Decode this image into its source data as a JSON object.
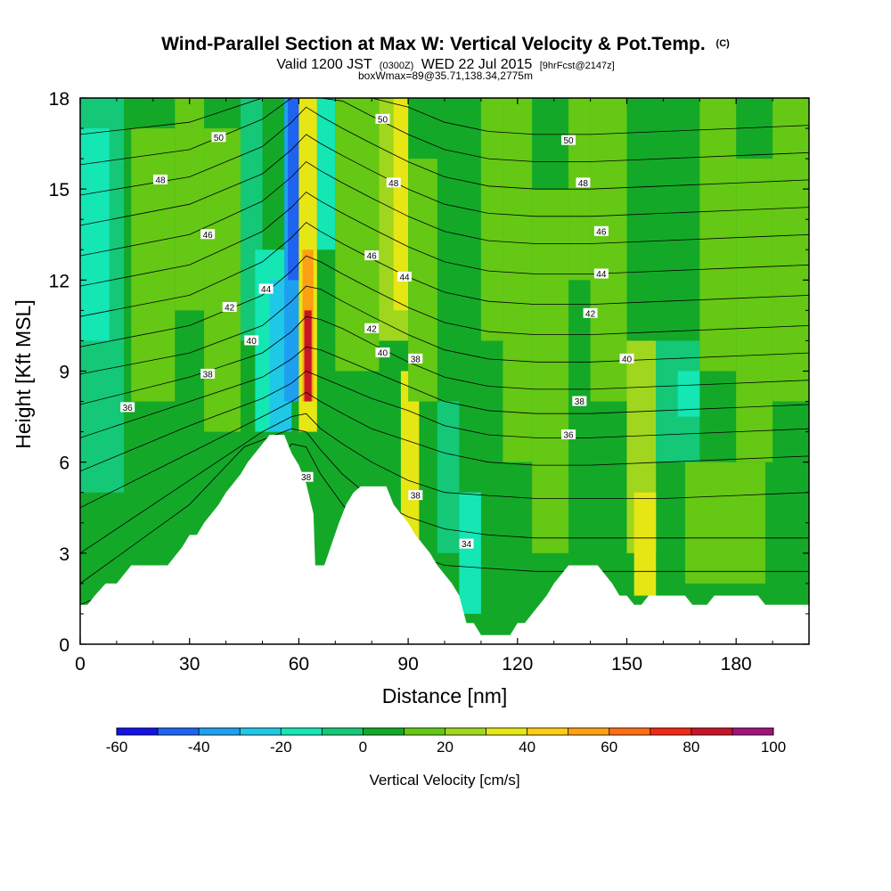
{
  "header": {
    "title": "Wind-Parallel Section at Max W: Vertical Velocity & Pot.Temp.",
    "copyright": "(C)",
    "subtitle_a": "Valid 1200 JST",
    "subtitle_b": "(0300Z)",
    "subtitle_c": "WED 22 Jul 2015",
    "subtitle_d": "[9hrFcst@2147z]",
    "subtitle2": "boxWmax=89@35.71,138.34,2775m"
  },
  "chart_data": {
    "type": "heatmap",
    "title": "Wind-Parallel Section at Max W: Vertical Velocity & Pot.Temp.",
    "xlabel": "Distance [nm]",
    "ylabel": "Height [Kft MSL]",
    "xlim": [
      0,
      200
    ],
    "ylim": [
      0,
      18
    ],
    "x_ticks": [
      "0",
      "30",
      "60",
      "90",
      "120",
      "150",
      "180"
    ],
    "y_ticks": [
      "0",
      "3",
      "6",
      "9",
      "12",
      "15",
      "18"
    ],
    "colorbar": {
      "label": "Vertical Velocity [cm/s]",
      "min": -60,
      "max": 100,
      "step": 10,
      "tick_labels": [
        "-60",
        "-40",
        "-20",
        "0",
        "20",
        "40",
        "60",
        "80",
        "100"
      ],
      "colors": [
        "#1414e6",
        "#1e64f0",
        "#1ea0f0",
        "#1ec8e6",
        "#14e6b4",
        "#14c878",
        "#14a828",
        "#64c814",
        "#a0d61e",
        "#e6e614",
        "#ffcc14",
        "#ffa014",
        "#ff6e14",
        "#f02814",
        "#c81428",
        "#a0147a",
        "#6e148c"
      ]
    },
    "terrain_top_kft": [
      [
        0,
        1.3
      ],
      [
        2,
        1.3
      ],
      [
        4,
        1.6
      ],
      [
        7,
        2
      ],
      [
        10,
        2
      ],
      [
        12,
        2.3
      ],
      [
        14,
        2.6
      ],
      [
        24,
        2.6
      ],
      [
        26,
        2.9
      ],
      [
        28,
        3.2
      ],
      [
        30,
        3.6
      ],
      [
        32,
        3.6
      ],
      [
        34,
        4
      ],
      [
        36,
        4.3
      ],
      [
        38,
        4.6
      ],
      [
        40,
        5
      ],
      [
        42,
        5.3
      ],
      [
        44,
        5.6
      ],
      [
        46,
        6
      ],
      [
        48,
        6.3
      ],
      [
        50,
        6.6
      ],
      [
        52,
        6.9
      ],
      [
        56,
        6.9
      ],
      [
        58,
        6.3
      ],
      [
        60,
        5.9
      ],
      [
        62,
        5.3
      ],
      [
        64,
        4.3
      ],
      [
        64.5,
        2.6
      ],
      [
        67,
        2.6
      ],
      [
        69,
        3.3
      ],
      [
        71,
        4
      ],
      [
        73,
        4.6
      ],
      [
        75,
        5
      ],
      [
        77,
        5.2
      ],
      [
        84,
        5.2
      ],
      [
        86,
        4.6
      ],
      [
        88,
        4.3
      ],
      [
        90,
        4
      ],
      [
        92,
        3.6
      ],
      [
        94,
        3.3
      ],
      [
        96,
        3
      ],
      [
        98,
        2.6
      ],
      [
        100,
        2.3
      ],
      [
        102,
        2
      ],
      [
        104,
        1.6
      ],
      [
        106,
        0.7
      ],
      [
        108,
        0.7
      ],
      [
        110,
        0.3
      ],
      [
        118,
        0.3
      ],
      [
        120,
        0.7
      ],
      [
        122,
        0.7
      ],
      [
        124,
        1
      ],
      [
        126,
        1.3
      ],
      [
        128,
        1.6
      ],
      [
        130,
        2
      ],
      [
        132,
        2.3
      ],
      [
        134,
        2.6
      ],
      [
        142,
        2.6
      ],
      [
        144,
        2.3
      ],
      [
        146,
        2
      ],
      [
        148,
        1.6
      ],
      [
        150,
        1.6
      ],
      [
        152,
        1.3
      ],
      [
        154,
        1.3
      ],
      [
        156,
        1.6
      ],
      [
        166,
        1.6
      ],
      [
        168,
        1.3
      ],
      [
        172,
        1.3
      ],
      [
        174,
        1.6
      ],
      [
        186,
        1.6
      ],
      [
        188,
        1.3
      ],
      [
        200,
        1.3
      ]
    ],
    "w_field": [
      {
        "x0": 0,
        "x1": 200,
        "y0": 0,
        "y1": 18,
        "w": 0
      },
      {
        "x0": 0,
        "x1": 12,
        "y0": 5,
        "y1": 18,
        "w": -10
      },
      {
        "x0": 0,
        "x1": 8,
        "y0": 10,
        "y1": 17,
        "w": -20
      },
      {
        "x0": 14,
        "x1": 26,
        "y0": 8,
        "y1": 17,
        "w": 10
      },
      {
        "x0": 26,
        "x1": 34,
        "y0": 11,
        "y1": 18,
        "w": 10
      },
      {
        "x0": 34,
        "x1": 44,
        "y0": 7,
        "y1": 17,
        "w": 10
      },
      {
        "x0": 44,
        "x1": 50,
        "y0": 10,
        "y1": 18,
        "w": -10
      },
      {
        "x0": 48,
        "x1": 56,
        "y0": 7,
        "y1": 13,
        "w": -20
      },
      {
        "x0": 52,
        "x1": 58,
        "y0": 7,
        "y1": 12,
        "w": -30
      },
      {
        "x0": 56,
        "x1": 60,
        "y0": 8,
        "y1": 18,
        "w": -40
      },
      {
        "x0": 57,
        "x1": 60,
        "y0": 12,
        "y1": 18,
        "w": -50
      },
      {
        "x0": 60,
        "x1": 65,
        "y0": 7,
        "y1": 18,
        "w": 30
      },
      {
        "x0": 61,
        "x1": 64,
        "y0": 8,
        "y1": 13,
        "w": 50
      },
      {
        "x0": 61.5,
        "x1": 63.5,
        "y0": 8,
        "y1": 11,
        "w": 80
      },
      {
        "x0": 62,
        "x1": 63,
        "y0": 8.5,
        "y1": 10,
        "w": 89
      },
      {
        "x0": 65,
        "x1": 70,
        "y0": 13,
        "y1": 18,
        "w": -20
      },
      {
        "x0": 70,
        "x1": 82,
        "y0": 9,
        "y1": 18,
        "w": 10
      },
      {
        "x0": 82,
        "x1": 90,
        "y0": 10,
        "y1": 18,
        "w": 20
      },
      {
        "x0": 86,
        "x1": 90,
        "y0": 11,
        "y1": 18,
        "w": 30
      },
      {
        "x0": 88,
        "x1": 93,
        "y0": 3,
        "y1": 9,
        "w": 30
      },
      {
        "x0": 90,
        "x1": 98,
        "y0": 8,
        "y1": 16,
        "w": 10
      },
      {
        "x0": 98,
        "x1": 104,
        "y0": 3,
        "y1": 8,
        "w": -10
      },
      {
        "x0": 104,
        "x1": 110,
        "y0": 1,
        "y1": 5,
        "w": -20
      },
      {
        "x0": 110,
        "x1": 116,
        "y0": 10,
        "y1": 18,
        "w": 10
      },
      {
        "x0": 116,
        "x1": 124,
        "y0": 6,
        "y1": 18,
        "w": 10
      },
      {
        "x0": 124,
        "x1": 134,
        "y0": 3,
        "y1": 15,
        "w": 10
      },
      {
        "x0": 134,
        "x1": 140,
        "y0": 12,
        "y1": 18,
        "w": 10
      },
      {
        "x0": 140,
        "x1": 150,
        "y0": 8,
        "y1": 18,
        "w": 10
      },
      {
        "x0": 150,
        "x1": 158,
        "y0": 3,
        "y1": 10,
        "w": 20
      },
      {
        "x0": 152,
        "x1": 158,
        "y0": 1.6,
        "y1": 5,
        "w": 30
      },
      {
        "x0": 158,
        "x1": 170,
        "y0": 6,
        "y1": 10,
        "w": -10
      },
      {
        "x0": 164,
        "x1": 170,
        "y0": 7.5,
        "y1": 9,
        "w": -20
      },
      {
        "x0": 170,
        "x1": 180,
        "y0": 9,
        "y1": 18,
        "w": 10
      },
      {
        "x0": 180,
        "x1": 190,
        "y0": 6,
        "y1": 16,
        "w": 10
      },
      {
        "x0": 190,
        "x1": 200,
        "y0": 8,
        "y1": 18,
        "w": 10
      },
      {
        "x0": 166,
        "x1": 188,
        "y0": 2,
        "y1": 6,
        "w": 10
      }
    ],
    "theta_contours": [
      {
        "x": [
          0,
          30,
          50,
          58,
          62,
          66,
          72,
          80,
          90,
          100,
          112,
          125,
          140,
          160,
          180,
          200
        ],
        "y": [
          1.3,
          2.8,
          5.4,
          6.6,
          6.5,
          5.6,
          4.6,
          3.4,
          3.0,
          2.6,
          2.5,
          2.4,
          2.4,
          2.4,
          2.4,
          2.4
        ]
      },
      {
        "x": [
          0,
          30,
          45,
          58,
          62,
          66,
          72,
          80,
          90,
          100,
          112,
          125,
          140,
          160,
          180,
          200
        ],
        "y": [
          2.0,
          4.6,
          6.5,
          7.1,
          7.0,
          6.4,
          5.6,
          4.8,
          4.2,
          3.8,
          3.6,
          3.5,
          3.5,
          3.5,
          3.5,
          3.5
        ]
      },
      {
        "x": [
          0,
          30,
          50,
          58,
          62,
          66,
          72,
          80,
          90,
          100,
          112,
          125,
          140,
          160,
          180,
          200
        ],
        "y": [
          3.0,
          5.4,
          7.0,
          7.5,
          7.6,
          7.1,
          6.6,
          6.0,
          5.4,
          5.0,
          4.9,
          4.8,
          4.8,
          4.8,
          4.9,
          5.0
        ]
      },
      {
        "x": [
          0,
          30,
          50,
          58,
          62,
          66,
          72,
          80,
          90,
          100,
          112,
          125,
          140,
          160,
          180,
          200
        ],
        "y": [
          4.5,
          6.3,
          7.5,
          8.0,
          8.3,
          8.0,
          7.6,
          7.1,
          6.7,
          6.3,
          6.0,
          5.9,
          5.9,
          6.0,
          6.1,
          6.2
        ]
      },
      {
        "x": [
          0,
          30,
          50,
          58,
          62,
          66,
          72,
          80,
          90,
          100,
          112,
          125,
          140,
          160,
          180,
          200
        ],
        "y": [
          5.7,
          7.2,
          8.1,
          8.6,
          9.0,
          8.8,
          8.5,
          8.1,
          7.7,
          7.2,
          6.9,
          6.8,
          6.8,
          6.9,
          7.0,
          7.1
        ]
      },
      {
        "x": [
          0,
          30,
          50,
          58,
          62,
          66,
          72,
          80,
          90,
          100,
          112,
          125,
          140,
          160,
          180,
          200
        ],
        "y": [
          6.8,
          8.0,
          8.8,
          9.4,
          9.8,
          9.7,
          9.4,
          9.0,
          8.5,
          8.0,
          7.7,
          7.6,
          7.6,
          7.7,
          7.8,
          7.9
        ]
      },
      {
        "x": [
          0,
          30,
          50,
          58,
          62,
          66,
          72,
          80,
          90,
          100,
          112,
          125,
          140,
          160,
          180,
          200
        ],
        "y": [
          7.9,
          8.8,
          9.6,
          10.3,
          10.8,
          10.7,
          10.4,
          9.9,
          9.3,
          8.8,
          8.5,
          8.4,
          8.4,
          8.5,
          8.6,
          8.7
        ]
      },
      {
        "x": [
          0,
          30,
          50,
          58,
          62,
          66,
          72,
          80,
          90,
          100,
          112,
          125,
          140,
          160,
          180,
          200
        ],
        "y": [
          8.9,
          9.6,
          10.5,
          11.3,
          11.8,
          11.7,
          11.3,
          10.8,
          10.2,
          9.7,
          9.4,
          9.3,
          9.3,
          9.4,
          9.5,
          9.6
        ]
      },
      {
        "x": [
          0,
          30,
          50,
          58,
          62,
          66,
          72,
          80,
          90,
          100,
          112,
          125,
          140,
          160,
          180,
          200
        ],
        "y": [
          9.8,
          10.5,
          11.5,
          12.3,
          12.8,
          12.6,
          12.2,
          11.7,
          11.1,
          10.6,
          10.3,
          10.2,
          10.2,
          10.3,
          10.4,
          10.5
        ]
      },
      {
        "x": [
          0,
          30,
          50,
          58,
          62,
          66,
          72,
          80,
          90,
          100,
          112,
          125,
          140,
          160,
          180,
          200
        ],
        "y": [
          10.8,
          11.5,
          12.6,
          13.4,
          13.9,
          13.6,
          13.2,
          12.7,
          12.1,
          11.6,
          11.3,
          11.2,
          11.2,
          11.3,
          11.4,
          11.5
        ]
      },
      {
        "x": [
          0,
          30,
          50,
          58,
          62,
          66,
          72,
          80,
          90,
          100,
          112,
          125,
          140,
          160,
          180,
          200
        ],
        "y": [
          11.8,
          12.5,
          13.6,
          14.4,
          14.9,
          14.6,
          14.2,
          13.7,
          13.1,
          12.6,
          12.3,
          12.2,
          12.2,
          12.3,
          12.4,
          12.5
        ]
      },
      {
        "x": [
          0,
          30,
          50,
          58,
          62,
          66,
          72,
          80,
          90,
          100,
          112,
          125,
          140,
          160,
          180,
          200
        ],
        "y": [
          12.8,
          13.5,
          14.6,
          15.4,
          15.9,
          15.6,
          15.2,
          14.7,
          14.1,
          13.6,
          13.3,
          13.2,
          13.2,
          13.3,
          13.4,
          13.5
        ]
      },
      {
        "x": [
          0,
          30,
          50,
          58,
          62,
          66,
          72,
          80,
          90,
          100,
          112,
          125,
          140,
          160,
          180,
          200
        ],
        "y": [
          13.8,
          14.5,
          15.5,
          16.3,
          16.8,
          16.5,
          16.1,
          15.6,
          15.0,
          14.5,
          14.2,
          14.1,
          14.1,
          14.2,
          14.3,
          14.4
        ]
      },
      {
        "x": [
          0,
          30,
          50,
          58,
          62,
          66,
          72,
          80,
          90,
          100,
          112,
          125,
          140,
          160,
          180,
          200
        ],
        "y": [
          14.8,
          15.4,
          16.4,
          17.2,
          17.7,
          17.4,
          17.0,
          16.5,
          15.9,
          15.4,
          15.1,
          15.0,
          15.0,
          15.1,
          15.2,
          15.3
        ]
      },
      {
        "x": [
          0,
          30,
          50,
          58,
          62,
          66,
          72,
          80,
          90,
          100,
          112,
          125,
          140,
          160,
          180,
          200
        ],
        "y": [
          15.8,
          16.3,
          17.3,
          18.0,
          18.0,
          18.0,
          17.9,
          17.4,
          16.8,
          16.3,
          16.0,
          15.9,
          15.9,
          16.0,
          16.1,
          16.2
        ]
      },
      {
        "x": [
          0,
          30,
          50,
          58,
          62,
          66,
          72,
          80,
          90,
          100,
          112,
          125,
          140,
          160,
          180,
          200
        ],
        "y": [
          16.8,
          17.2,
          18.0,
          18.0,
          18.0,
          18.0,
          18.0,
          18.0,
          17.7,
          17.2,
          16.9,
          16.8,
          16.8,
          16.9,
          17.0,
          17.1
        ]
      }
    ],
    "theta_labels": [
      {
        "text": "36",
        "x": 13,
        "y": 7.8
      },
      {
        "text": "38",
        "x": 35,
        "y": 8.9
      },
      {
        "text": "40",
        "x": 47,
        "y": 10.0
      },
      {
        "text": "42",
        "x": 41,
        "y": 11.1
      },
      {
        "text": "44",
        "x": 51,
        "y": 11.7
      },
      {
        "text": "46",
        "x": 35,
        "y": 13.5
      },
      {
        "text": "48",
        "x": 22,
        "y": 15.3
      },
      {
        "text": "50",
        "x": 38,
        "y": 16.7
      },
      {
        "text": "38",
        "x": 62,
        "y": 5.5
      },
      {
        "text": "42",
        "x": 80,
        "y": 10.4
      },
      {
        "text": "40",
        "x": 83,
        "y": 9.6
      },
      {
        "text": "38",
        "x": 92,
        "y": 9.4
      },
      {
        "text": "46",
        "x": 80,
        "y": 12.8
      },
      {
        "text": "44",
        "x": 89,
        "y": 12.1
      },
      {
        "text": "48",
        "x": 86,
        "y": 15.2
      },
      {
        "text": "50",
        "x": 83,
        "y": 17.3
      },
      {
        "text": "38",
        "x": 92,
        "y": 4.9
      },
      {
        "text": "34",
        "x": 106,
        "y": 3.3
      },
      {
        "text": "50",
        "x": 134,
        "y": 16.6
      },
      {
        "text": "48",
        "x": 138,
        "y": 15.2
      },
      {
        "text": "46",
        "x": 143,
        "y": 13.6
      },
      {
        "text": "44",
        "x": 143,
        "y": 12.2
      },
      {
        "text": "42",
        "x": 140,
        "y": 10.9
      },
      {
        "text": "40",
        "x": 150,
        "y": 9.4
      },
      {
        "text": "38",
        "x": 137,
        "y": 8.0
      },
      {
        "text": "36",
        "x": 134,
        "y": 6.9
      }
    ]
  }
}
